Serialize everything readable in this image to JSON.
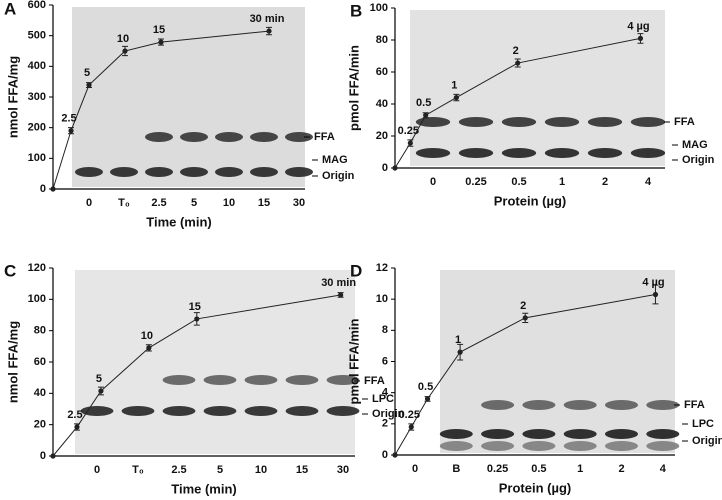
{
  "chart_data": [
    {
      "type": "line",
      "panel": "A",
      "xlabel": "Time (min)",
      "ylabel": "nmol FFA/mg",
      "categories": [
        "0",
        "T₀",
        "2.5",
        "5",
        "10",
        "15",
        "30"
      ],
      "band_labels": [
        "FFA",
        "MAG",
        "Origin"
      ],
      "xlim": [
        0,
        35
      ],
      "ylim": [
        0,
        600
      ],
      "yticks": [
        0,
        100,
        200,
        300,
        400,
        500,
        600
      ],
      "series": [
        {
          "color": "#222222",
          "x": [
            0,
            2.5,
            5,
            10,
            15,
            30
          ],
          "values": [
            0,
            190,
            339,
            450,
            479,
            515
          ],
          "errors": [
            null,
            10,
            8,
            15,
            10,
            12
          ],
          "point_labels": [
            null,
            "2.5",
            "5",
            "10",
            "15",
            "30 min"
          ]
        }
      ]
    },
    {
      "type": "line",
      "panel": "B",
      "xlabel": "Protein (µg)",
      "ylabel": "pmol FFA/min",
      "categories": [
        "0",
        "0.25",
        "0.5",
        "1",
        "2",
        "4"
      ],
      "band_labels": [
        "FFA",
        "MAG",
        "Origin"
      ],
      "xlim": [
        0,
        4.4
      ],
      "ylim": [
        0,
        100
      ],
      "yticks": [
        0,
        20,
        40,
        60,
        80,
        100
      ],
      "series": [
        {
          "color": "#222222",
          "x": [
            0,
            0.25,
            0.5,
            1,
            2,
            4
          ],
          "values": [
            0,
            15.6,
            33,
            44,
            65.6,
            81
          ],
          "errors": [
            null,
            2,
            1.5,
            2,
            2.5,
            3
          ],
          "point_labels": [
            null,
            "0.25",
            "0.5",
            "1",
            "2",
            "4 µg"
          ]
        }
      ]
    },
    {
      "type": "line",
      "panel": "C",
      "xlabel": "Time (min)",
      "ylabel": "nmol FFA/mg",
      "categories": [
        "0",
        "T₀",
        "2.5",
        "5",
        "10",
        "15",
        "30"
      ],
      "band_labels": [
        "FFA",
        "LPC",
        "Origin"
      ],
      "xlim": [
        0,
        31.5
      ],
      "ylim": [
        0,
        120
      ],
      "yticks": [
        0,
        20,
        40,
        60,
        80,
        100,
        120
      ],
      "series": [
        {
          "color": "#222222",
          "x": [
            0,
            2.5,
            5,
            10,
            15,
            30
          ],
          "values": [
            0,
            18.5,
            41.5,
            69,
            87.5,
            102.8
          ],
          "errors": [
            null,
            2,
            2.5,
            2,
            4,
            1.5
          ],
          "point_labels": [
            null,
            "2.5",
            "5",
            "10",
            "15",
            "30 min"
          ]
        }
      ]
    },
    {
      "type": "line",
      "panel": "D",
      "xlabel": "Protein (µg)",
      "ylabel": "pmol FFA/min",
      "categories": [
        "0",
        "B",
        "0.25",
        "0.5",
        "1",
        "2",
        "4"
      ],
      "band_labels": [
        "FFA",
        "LPC",
        "Origin"
      ],
      "xlim": [
        0,
        4.3
      ],
      "ylim": [
        0,
        12
      ],
      "yticks": [
        0,
        2,
        4,
        6,
        8,
        10,
        12
      ],
      "series": [
        {
          "color": "#222222",
          "x": [
            0,
            0.25,
            0.5,
            1,
            2,
            4
          ],
          "values": [
            0,
            1.8,
            3.6,
            6.6,
            8.8,
            10.3
          ],
          "errors": [
            null,
            0.2,
            0.15,
            0.5,
            0.3,
            0.6
          ],
          "point_labels": [
            null,
            "0.25",
            "0.5",
            "1",
            "2",
            "4 µg"
          ]
        }
      ]
    }
  ]
}
